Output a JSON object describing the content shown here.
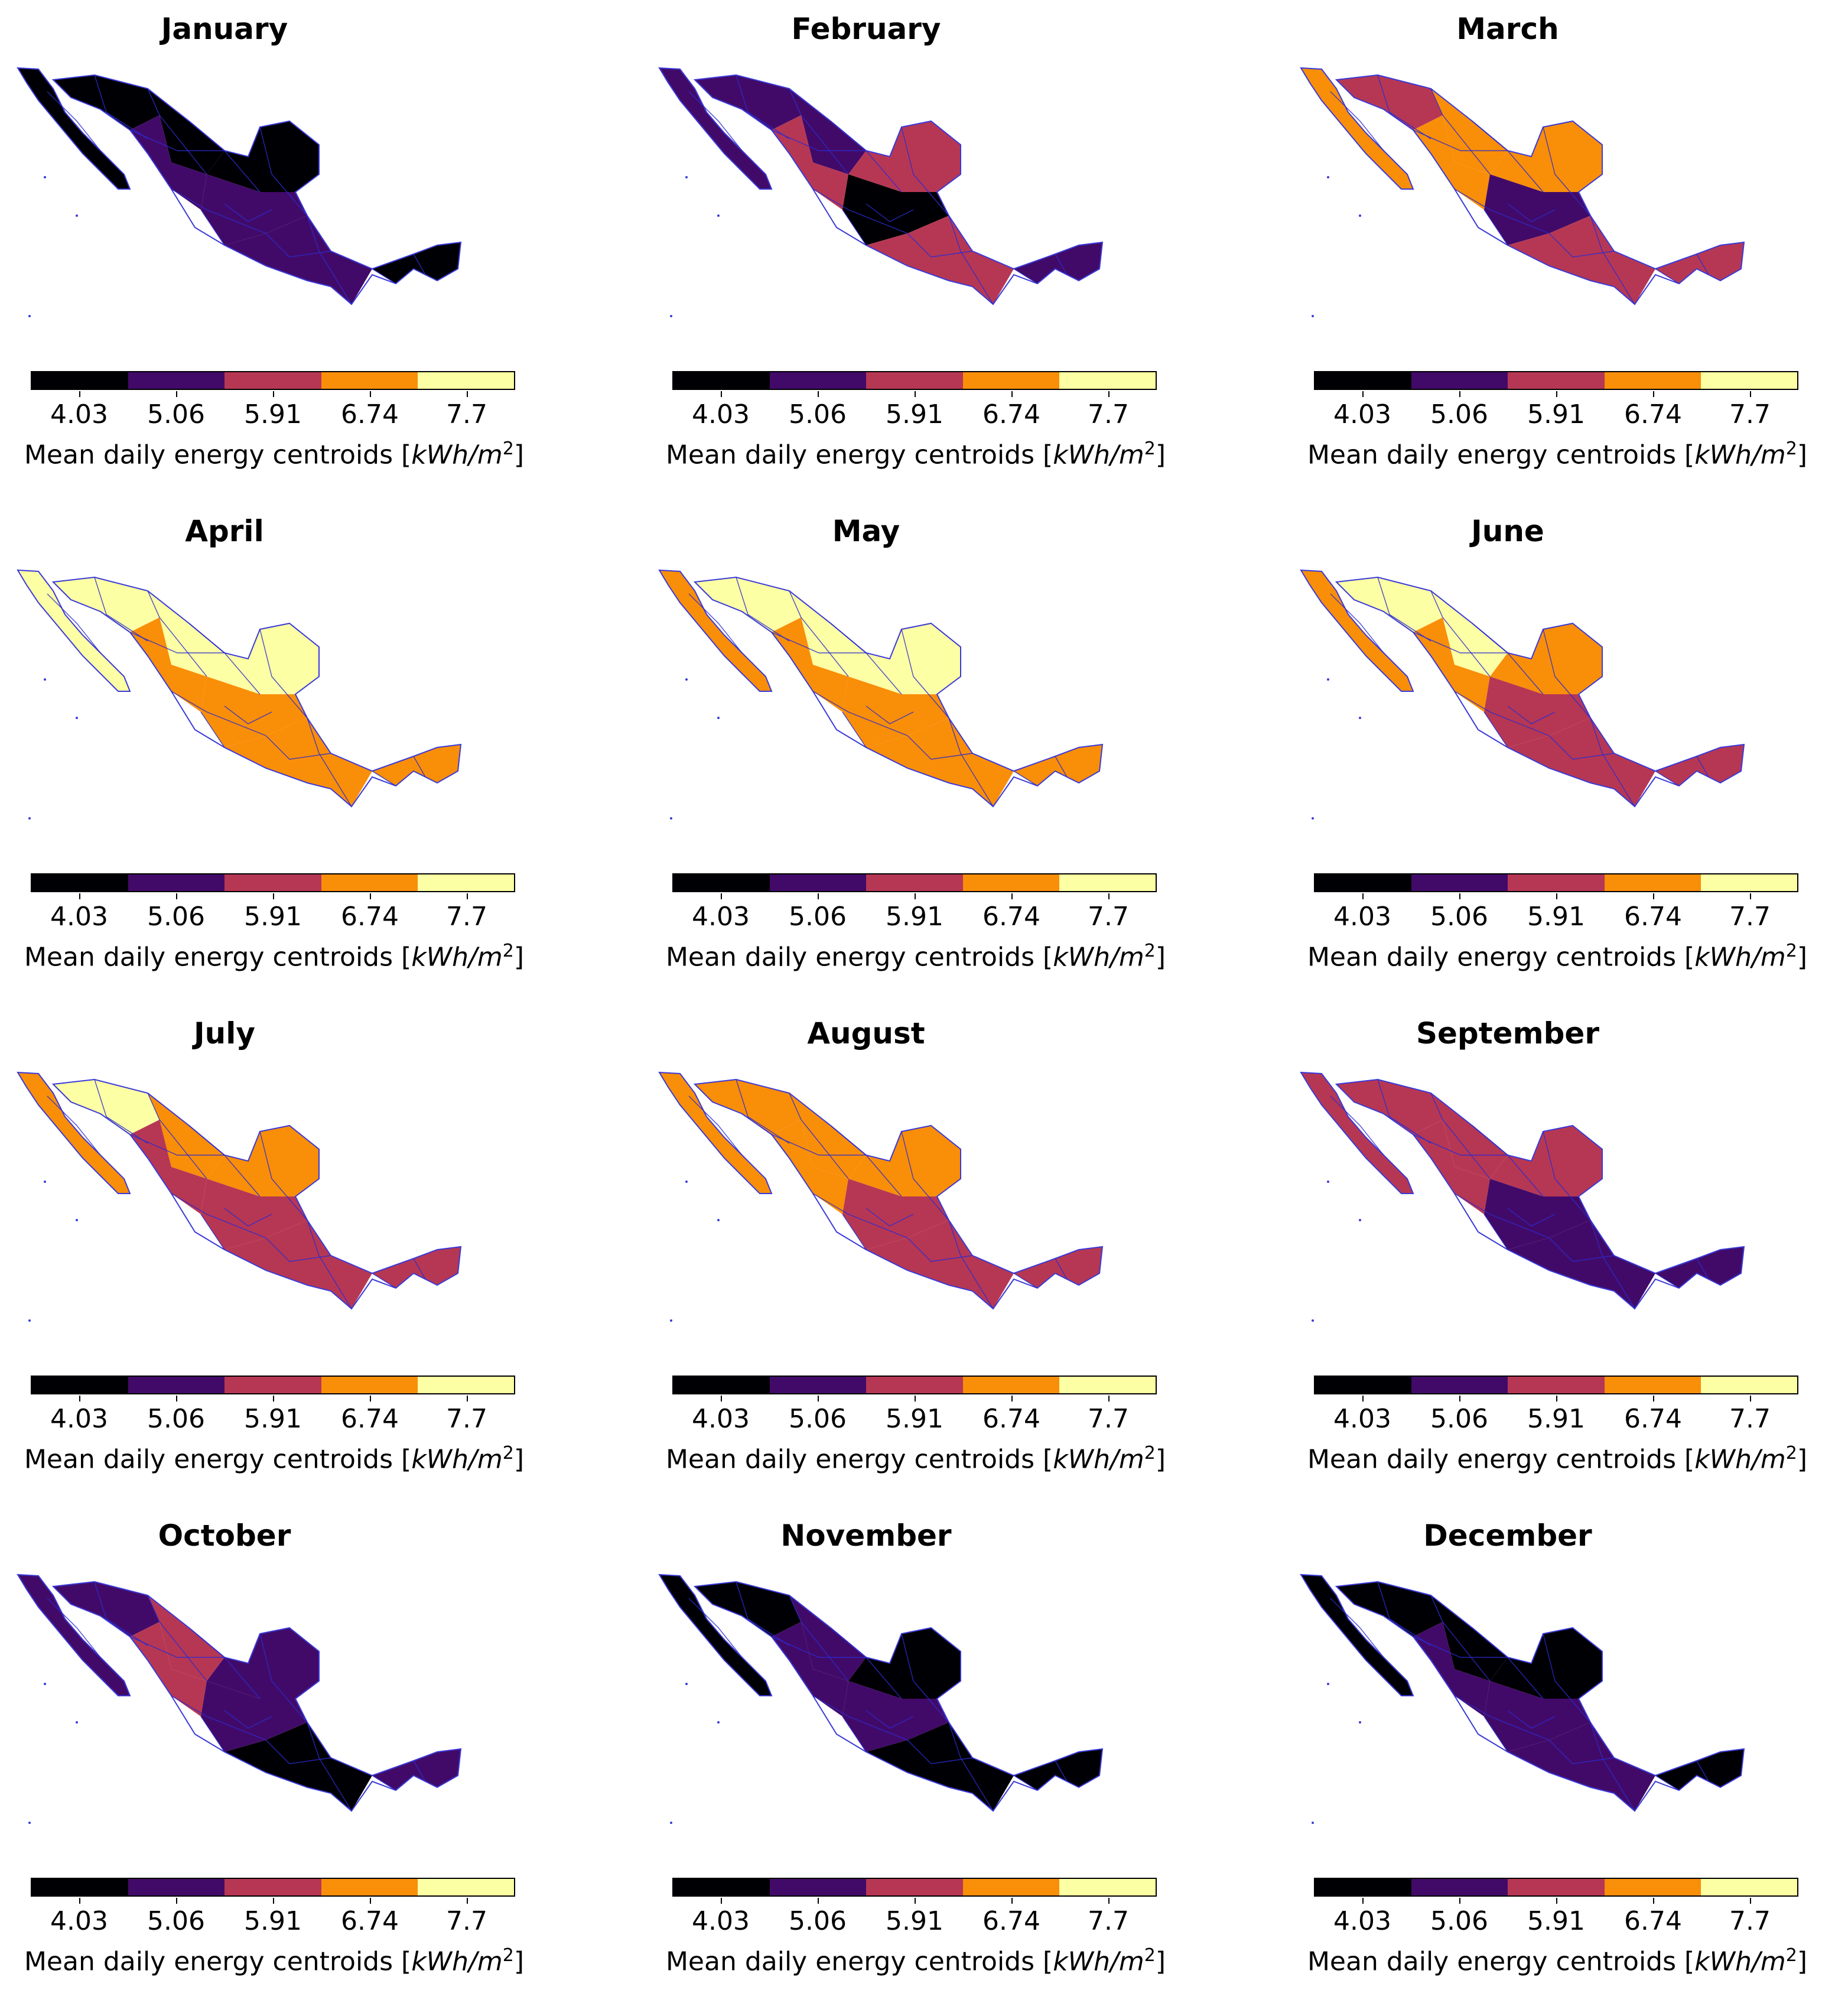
{
  "colorbar": {
    "label": "Mean daily energy centroids [",
    "unit": "kWh/m",
    "unit_exp": "2",
    "label_end": "]",
    "ticks": [
      "4.03",
      "5.06",
      "5.91",
      "6.74",
      "7.7"
    ],
    "colors": [
      "#000004",
      "#420a68",
      "#b63754",
      "#f98e09",
      "#fcffa4"
    ]
  },
  "panels": [
    {
      "month": "January",
      "palette": [
        0,
        0,
        0,
        1,
        1,
        0,
        1,
        0
      ]
    },
    {
      "month": "February",
      "palette": [
        1,
        1,
        2,
        2,
        0,
        1,
        2,
        1
      ]
    },
    {
      "month": "March",
      "palette": [
        2,
        3,
        3,
        3,
        1,
        3,
        2,
        2
      ]
    },
    {
      "month": "April",
      "palette": [
        4,
        4,
        4,
        3,
        3,
        4,
        3,
        3
      ]
    },
    {
      "month": "May",
      "palette": [
        4,
        4,
        4,
        3,
        3,
        3,
        3,
        3
      ]
    },
    {
      "month": "June",
      "palette": [
        4,
        4,
        3,
        3,
        2,
        3,
        2,
        2
      ]
    },
    {
      "month": "July",
      "palette": [
        4,
        3,
        3,
        2,
        2,
        3,
        2,
        2
      ]
    },
    {
      "month": "August",
      "palette": [
        3,
        3,
        3,
        3,
        2,
        3,
        2,
        2
      ]
    },
    {
      "month": "September",
      "palette": [
        2,
        2,
        2,
        2,
        1,
        2,
        1,
        1
      ]
    },
    {
      "month": "October",
      "palette": [
        1,
        2,
        1,
        2,
        1,
        1,
        0,
        1
      ]
    },
    {
      "month": "November",
      "palette": [
        0,
        1,
        0,
        1,
        1,
        0,
        0,
        0
      ]
    },
    {
      "month": "December",
      "palette": [
        0,
        0,
        0,
        1,
        1,
        0,
        1,
        0
      ]
    }
  ]
}
